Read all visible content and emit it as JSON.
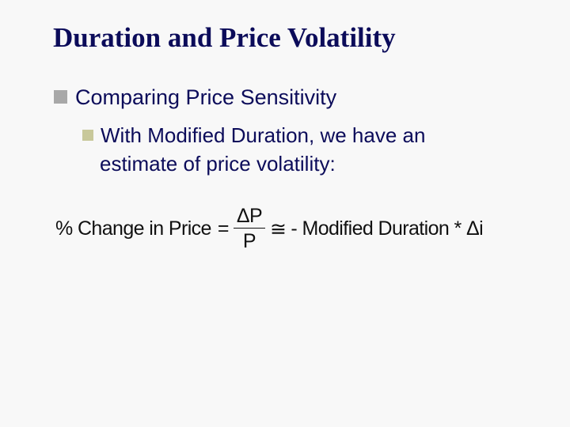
{
  "slide": {
    "title": "Duration and Price Volatility",
    "bullets": [
      {
        "text": "Comparing Price Sensitivity",
        "sub": [
          {
            "line1": "With Modified Duration, we have an",
            "line2": "estimate of price volatility:"
          }
        ]
      }
    ],
    "equation": {
      "lhs": "% Change in Price",
      "eq": "=",
      "numerator": "ΔP",
      "denominator": "P",
      "approx": "≅",
      "rhs": "- Modified Duration * Δi"
    },
    "colors": {
      "text": "#0c0c5a",
      "background": "#f8f8f8",
      "bullet1": "#a8a8a8",
      "bullet2": "#c8c89a"
    }
  }
}
